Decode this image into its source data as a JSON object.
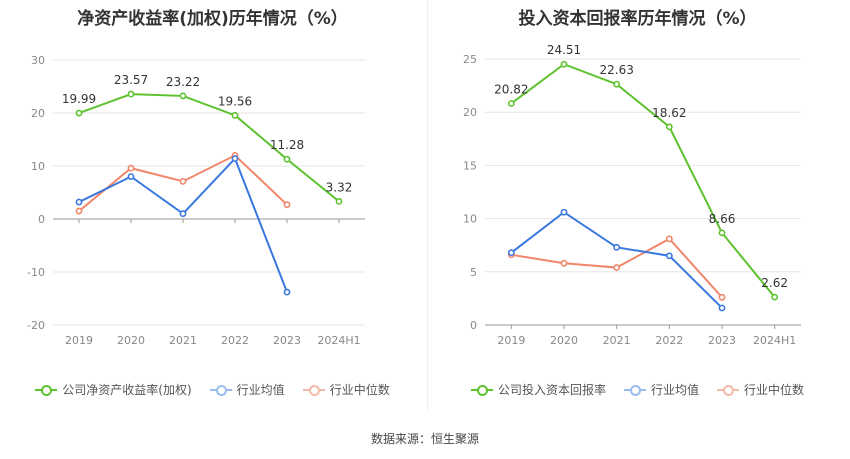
{
  "source": "数据来源：恒生聚源",
  "colors": {
    "company": "#5ec22f",
    "avg": "#3a78e0",
    "median": "#f0876a"
  },
  "chart_data": [
    {
      "type": "line",
      "title": "净资产收益率(加权)历年情况（%）",
      "categories": [
        "2019",
        "2020",
        "2021",
        "2022",
        "2023",
        "2024H1"
      ],
      "ylim": [
        -20,
        30
      ],
      "yticks": [
        -20,
        -10,
        0,
        10,
        20,
        30
      ],
      "legend": "bottom",
      "grid": true,
      "series": [
        {
          "name": "公司净资产收益率(加权)",
          "key": "company",
          "values": [
            19.99,
            23.57,
            23.22,
            19.56,
            11.28,
            3.32
          ],
          "labels": [
            "19.99",
            "23.57",
            "23.22",
            "19.56",
            "11.28",
            "3.32"
          ]
        },
        {
          "name": "行业均值",
          "key": "avg",
          "values": [
            3.2,
            8.0,
            1.0,
            11.4,
            -13.8,
            null
          ]
        },
        {
          "name": "行业中位数",
          "key": "median",
          "values": [
            1.5,
            9.6,
            7.1,
            12.0,
            2.7,
            null
          ]
        }
      ]
    },
    {
      "type": "line",
      "title": "投入资本回报率历年情况（%）",
      "categories": [
        "2019",
        "2020",
        "2021",
        "2022",
        "2023",
        "2024H1"
      ],
      "ylim": [
        0,
        25
      ],
      "yticks": [
        0,
        5,
        10,
        15,
        20,
        25
      ],
      "legend": "bottom",
      "grid": true,
      "series": [
        {
          "name": "公司投入资本回报率",
          "key": "company",
          "values": [
            20.82,
            24.51,
            22.63,
            18.62,
            8.66,
            2.62
          ],
          "labels": [
            "20.82",
            "24.51",
            "22.63",
            "18.62",
            "8.66",
            "2.62"
          ]
        },
        {
          "name": "行业均值",
          "key": "avg",
          "values": [
            6.8,
            10.6,
            7.3,
            6.5,
            1.6,
            null
          ]
        },
        {
          "name": "行业中位数",
          "key": "median",
          "values": [
            6.6,
            5.8,
            5.4,
            8.1,
            2.6,
            null
          ]
        }
      ]
    }
  ]
}
